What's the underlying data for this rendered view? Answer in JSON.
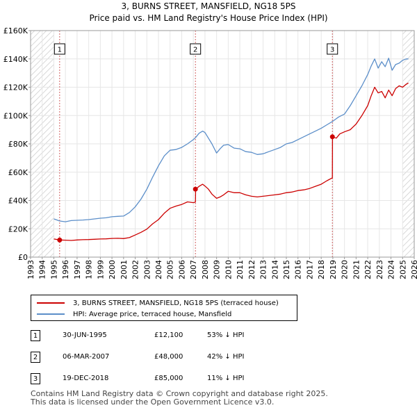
{
  "title_line1": "3, BURNS STREET, MANSFIELD, NG18 5PS",
  "title_line2": "Price paid vs. HM Land Registry's House Price Index (HPI)",
  "colors": {
    "price": "#cc0000",
    "hpi": "#5b8ec9",
    "marker_bg": "#ffffff",
    "hatch": "#cccccc",
    "grid": "#e6e6e6",
    "vline": "#d06060"
  },
  "chart_data": {
    "type": "line",
    "title": "Price paid vs. HM Land Registry's House Price Index (HPI)",
    "xlim": [
      1993,
      2026
    ],
    "ylim": [
      0,
      160000
    ],
    "x_ticks": [
      1993,
      1994,
      1995,
      1996,
      1997,
      1998,
      1999,
      2000,
      2001,
      2002,
      2003,
      2004,
      2005,
      2006,
      2007,
      2008,
      2009,
      2010,
      2011,
      2012,
      2013,
      2014,
      2015,
      2016,
      2017,
      2018,
      2019,
      2020,
      2021,
      2022,
      2023,
      2024,
      2025,
      2026
    ],
    "x_tick_labels": [
      "1993",
      "1994",
      "1995",
      "1996",
      "1997",
      "1998",
      "1999",
      "2000",
      "2001",
      "2002",
      "2003",
      "2004",
      "2005",
      "2006",
      "2007",
      "2008",
      "2009",
      "2010",
      "2011",
      "2012",
      "2013",
      "2014",
      "2015",
      "2016",
      "2017",
      "2018",
      "2019",
      "2020",
      "2021",
      "2022",
      "2023",
      "2024",
      "2025",
      "2026"
    ],
    "y_ticks": [
      0,
      20000,
      40000,
      60000,
      80000,
      100000,
      120000,
      140000,
      160000
    ],
    "y_tick_labels": [
      "£0",
      "£20K",
      "£40K",
      "£60K",
      "£80K",
      "£100K",
      "£120K",
      "£140K",
      "£160K"
    ],
    "hatched_ranges": [
      [
        1993,
        1995.0
      ],
      [
        2025.0,
        2026
      ]
    ],
    "series": [
      {
        "name": "3, BURNS STREET, MANSFIELD, NG18 5PS (terraced house)",
        "color": "#cc0000",
        "x": [
          1995.0,
          1995.5,
          1996.0,
          1996.5,
          1997.0,
          1997.5,
          1998.0,
          1998.5,
          1999.0,
          1999.5,
          2000.0,
          2000.5,
          2001.0,
          2001.5,
          2002.0,
          2002.5,
          2003.0,
          2003.5,
          2004.0,
          2004.5,
          2005.0,
          2005.5,
          2006.0,
          2006.5,
          2007.0,
          2007.18,
          2007.2,
          2007.5,
          2007.8,
          2008.0,
          2008.3,
          2008.6,
          2009.0,
          2009.3,
          2009.6,
          2010.0,
          2010.5,
          2011.0,
          2011.5,
          2012.0,
          2012.5,
          2013.0,
          2013.5,
          2014.0,
          2014.5,
          2015.0,
          2015.5,
          2016.0,
          2016.5,
          2017.0,
          2017.5,
          2018.0,
          2018.5,
          2018.96,
          2018.97,
          2019.3,
          2019.6,
          2020.0,
          2020.5,
          2021.0,
          2021.5,
          2022.0,
          2022.3,
          2022.6,
          2022.9,
          2023.2,
          2023.5,
          2023.8,
          2024.1,
          2024.4,
          2024.7,
          2025.0,
          2025.3,
          2025.5
        ],
        "y": [
          12800,
          12100,
          12000,
          11800,
          12100,
          12300,
          12400,
          12600,
          12800,
          12900,
          13200,
          13300,
          13100,
          13800,
          15600,
          17500,
          19800,
          23500,
          26500,
          31000,
          34500,
          36000,
          37200,
          39000,
          38500,
          38800,
          48000,
          50000,
          51500,
          50200,
          48000,
          44500,
          41500,
          42500,
          44000,
          46500,
          45500,
          45500,
          44000,
          43000,
          42500,
          43000,
          43500,
          44000,
          44500,
          45500,
          46000,
          47000,
          47500,
          48500,
          50000,
          51500,
          54000,
          56000,
          85000,
          84000,
          87000,
          88500,
          90000,
          94000,
          100000,
          107000,
          114000,
          120000,
          116000,
          117000,
          112500,
          118000,
          114000,
          119000,
          121000,
          120000,
          122000,
          123000
        ]
      },
      {
        "name": "HPI: Average price, terraced house, Mansfield",
        "color": "#5b8ec9",
        "x": [
          1995.0,
          1995.5,
          1996.0,
          1996.5,
          1997.0,
          1997.5,
          1998.0,
          1998.5,
          1999.0,
          1999.5,
          2000.0,
          2000.5,
          2001.0,
          2001.5,
          2002.0,
          2002.5,
          2003.0,
          2003.5,
          2004.0,
          2004.5,
          2005.0,
          2005.5,
          2006.0,
          2006.5,
          2007.0,
          2007.2,
          2007.5,
          2007.8,
          2008.0,
          2008.3,
          2008.6,
          2009.0,
          2009.3,
          2009.6,
          2010.0,
          2010.5,
          2011.0,
          2011.5,
          2012.0,
          2012.5,
          2013.0,
          2013.5,
          2014.0,
          2014.5,
          2015.0,
          2015.5,
          2016.0,
          2016.5,
          2017.0,
          2017.5,
          2018.0,
          2018.5,
          2019.0,
          2019.5,
          2020.0,
          2020.5,
          2021.0,
          2021.5,
          2022.0,
          2022.3,
          2022.6,
          2022.9,
          2023.2,
          2023.5,
          2023.8,
          2024.1,
          2024.4,
          2024.7,
          2025.0,
          2025.3,
          2025.5
        ],
        "y": [
          27000,
          25500,
          25000,
          25800,
          26000,
          26200,
          26500,
          27000,
          27500,
          27800,
          28500,
          28800,
          29000,
          31500,
          35500,
          41000,
          48000,
          56500,
          64500,
          71500,
          75500,
          76000,
          77500,
          80000,
          83000,
          84500,
          87500,
          89000,
          88000,
          84000,
          80000,
          73500,
          76500,
          79000,
          79500,
          77000,
          76500,
          74500,
          74000,
          72500,
          73000,
          74500,
          76000,
          77500,
          80000,
          81000,
          83000,
          85000,
          87000,
          89000,
          91000,
          93500,
          96000,
          99000,
          101000,
          107000,
          114000,
          121000,
          129000,
          135000,
          140000,
          133500,
          138000,
          134500,
          140500,
          132000,
          136000,
          137000,
          139000,
          140000,
          140000
        ]
      }
    ],
    "sale_markers": [
      {
        "label": "1",
        "x": 1995.5,
        "y": 12100
      },
      {
        "label": "2",
        "x": 2007.18,
        "y": 48000
      },
      {
        "label": "3",
        "x": 2018.96,
        "y": 85000
      }
    ],
    "legend_position": "below"
  },
  "legend": {
    "price_label": "3, BURNS STREET, MANSFIELD, NG18 5PS (terraced house)",
    "hpi_label": "HPI: Average price, terraced house, Mansfield"
  },
  "transactions": [
    {
      "num": "1",
      "date": "30-JUN-1995",
      "price": "£12,100",
      "hpi": "53% ↓ HPI"
    },
    {
      "num": "2",
      "date": "06-MAR-2007",
      "price": "£48,000",
      "hpi": "42% ↓ HPI"
    },
    {
      "num": "3",
      "date": "19-DEC-2018",
      "price": "£85,000",
      "hpi": "11% ↓ HPI"
    }
  ],
  "footer_line1": "Contains HM Land Registry data © Crown copyright and database right 2025.",
  "footer_line2": "This data is licensed under the Open Government Licence v3.0."
}
